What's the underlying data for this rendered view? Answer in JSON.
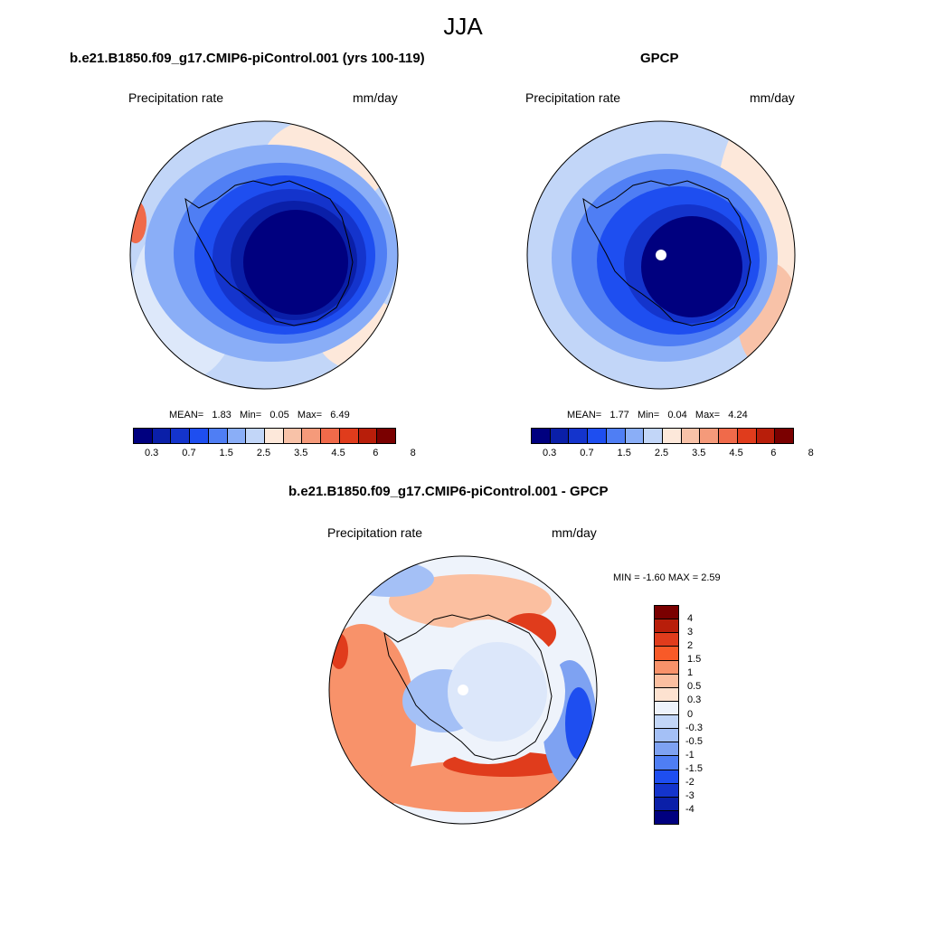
{
  "title": "JJA",
  "panels": [
    {
      "title": "b.e21.B1850.f09_g17.CMIP6-piControl.001 (yrs 100-119)",
      "left_label": "Precipitation rate",
      "right_label": "mm/day",
      "stats": {
        "mean_label": "MEAN=",
        "mean": "1.83",
        "min_label": "Min=",
        "min": "0.05",
        "max_label": "Max=",
        "max": "6.49"
      }
    },
    {
      "title": "GPCP",
      "left_label": "Precipitation rate",
      "right_label": "mm/day",
      "stats": {
        "mean_label": "MEAN=",
        "mean": "1.77",
        "min_label": "Min=",
        "min": "0.04",
        "max_label": "Max=",
        "max": "4.24"
      }
    },
    {
      "title": "b.e21.B1850.f09_g17.CMIP6-piControl.001 - GPCP",
      "left_label": "Precipitation rate",
      "right_label": "mm/day",
      "minmax": "MIN =  -1.60 MAX =   2.59"
    }
  ],
  "colorbar_abs": {
    "colors": [
      "#00007f",
      "#0a1fa8",
      "#1434cc",
      "#1e4ef0",
      "#4f7ef4",
      "#8aaef7",
      "#c2d6f8",
      "#fde8da",
      "#f8c2a8",
      "#f59a7a",
      "#f06a4a",
      "#e03c1c",
      "#b81e0a",
      "#7a0000"
    ],
    "ticks": [
      "0.3",
      "0.7",
      "1.5",
      "2.5",
      "3.5",
      "4.5",
      "6",
      "8"
    ]
  },
  "colorbar_diff": {
    "colors": [
      "#7a0000",
      "#b81e0a",
      "#e03c1c",
      "#f85a28",
      "#f8926a",
      "#fbbfa0",
      "#fde2d0",
      "#eef3fb",
      "#c2d6f8",
      "#a4c0f6",
      "#7ea2f2",
      "#4f7ef4",
      "#1e4ef0",
      "#1434cc",
      "#0a1fa8",
      "#00007f"
    ],
    "ticks": [
      "4",
      "3",
      "2",
      "1.5",
      "1",
      "0.5",
      "0.3",
      "0",
      "-0.3",
      "-0.5",
      "-1",
      "-1.5",
      "-2",
      "-3",
      "-4"
    ]
  }
}
